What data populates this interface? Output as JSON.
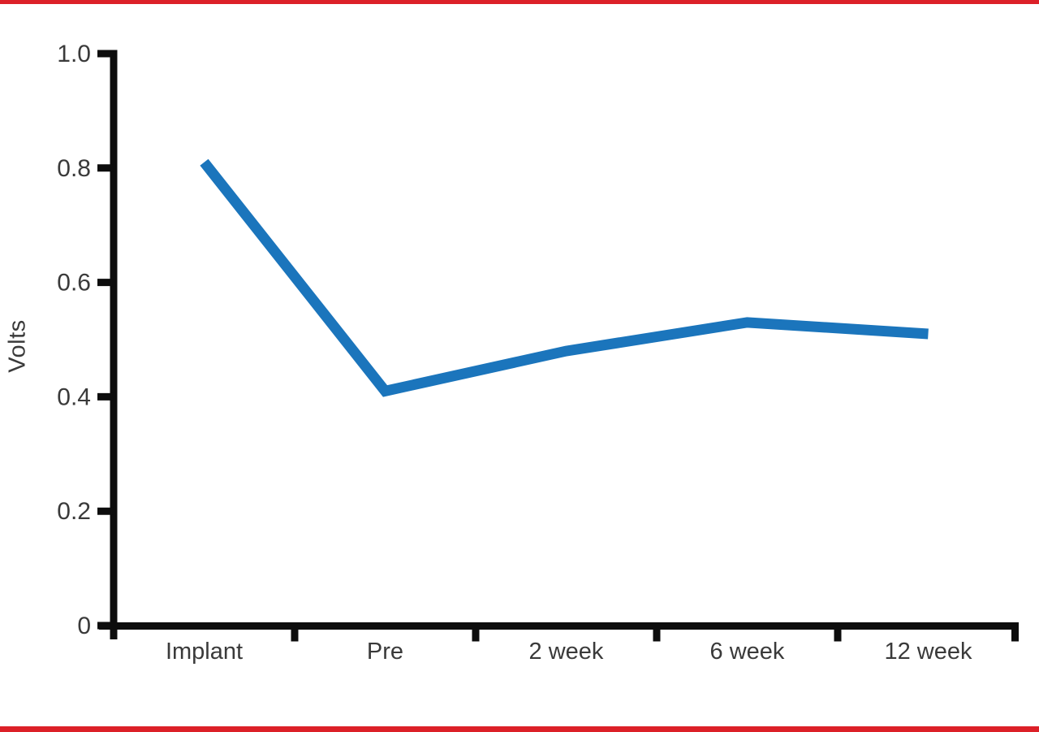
{
  "chart_data": {
    "type": "line",
    "title": "",
    "xlabel": "",
    "ylabel": "Volts",
    "categories": [
      "Implant",
      "Pre",
      "2 week",
      "6 week",
      "12 week"
    ],
    "series": [
      {
        "name": "Volts",
        "values": [
          0.81,
          0.41,
          0.48,
          0.53,
          0.51
        ]
      }
    ],
    "ylim": [
      0,
      1.0
    ],
    "ytick_values": [
      0,
      0.2,
      0.4,
      0.6,
      0.8,
      1.0
    ],
    "ytick_labels": [
      "0",
      "0.2",
      "0.4",
      "0.6",
      "0.8",
      "1.0"
    ],
    "grid": false,
    "legend_position": "none",
    "line_color": "#1b75bc",
    "axis_color": "#0d0d0d",
    "text_color": "#3a3a3a"
  },
  "decorations": {
    "top_rule_color": "#dc2028",
    "bottom_rule_color": "#dc2028"
  }
}
